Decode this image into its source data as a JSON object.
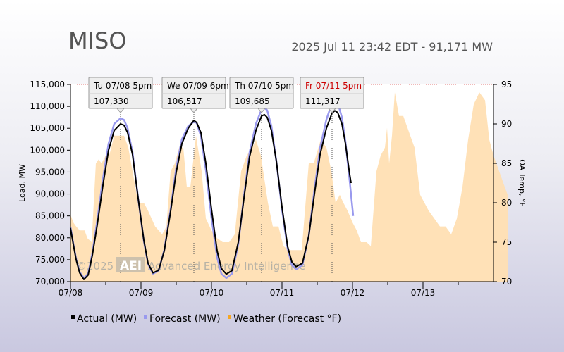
{
  "header": {
    "title": "MISO",
    "subtitle": "2025 Jul 11 23:42 EDT - 91,171 MW"
  },
  "watermark": {
    "prefix": "©2025",
    "logo": "AEI",
    "text": "Advanced Energy Intelligence"
  },
  "colors": {
    "actual": "#000000",
    "forecast": "#9999ee",
    "weather": "#ffdfb3",
    "weather_legend": "#f5a623",
    "tooltip_red": "#cc0000"
  },
  "chart_data": {
    "type": "line",
    "title": "MISO",
    "subtitle": "2025 Jul 11 23:42 EDT - 91,171 MW",
    "xlabel": "",
    "ylabel": "Load, MW",
    "y2label": "OA Temp, °F",
    "ylim": [
      70000,
      115000
    ],
    "y2lim": [
      70,
      95
    ],
    "xlim": [
      0,
      6
    ],
    "x_unit": "days since 07/08 00:00",
    "x_ticks": [
      {
        "x": 0,
        "label": "07/08"
      },
      {
        "x": 1,
        "label": "07/09"
      },
      {
        "x": 2,
        "label": "07/10"
      },
      {
        "x": 3,
        "label": "07/11"
      },
      {
        "x": 4,
        "label": "07/12"
      },
      {
        "x": 5,
        "label": "07/13"
      }
    ],
    "y_ticks": [
      70000,
      75000,
      80000,
      85000,
      90000,
      95000,
      100000,
      105000,
      110000,
      115000
    ],
    "y_tick_labels": [
      "70,000",
      "75,000",
      "80,000",
      "85,000",
      "90,000",
      "95,000",
      "100,000",
      "105,000",
      "110,000",
      "115,000"
    ],
    "y2_ticks": [
      70,
      75,
      80,
      85,
      90,
      95
    ],
    "grid": false,
    "legend": {
      "placement": "bottom-left",
      "items": [
        {
          "label": "Actual (MW)",
          "color": "#000000"
        },
        {
          "label": "Forecast (MW)",
          "color": "#9999ee"
        },
        {
          "label": "Weather (Forecast °F)",
          "color": "#f5a623"
        }
      ]
    },
    "series": [
      {
        "name": "Actual (MW)",
        "axis": "left",
        "points": [
          [
            0,
            82200
          ],
          [
            0.04,
            78500
          ],
          [
            0.08,
            75000
          ],
          [
            0.13,
            72000
          ],
          [
            0.19,
            70500
          ],
          [
            0.25,
            71500
          ],
          [
            0.31,
            76000
          ],
          [
            0.38,
            83000
          ],
          [
            0.46,
            92000
          ],
          [
            0.54,
            100000
          ],
          [
            0.62,
            104500
          ],
          [
            0.71,
            106000
          ],
          [
            0.76,
            105700
          ],
          [
            0.81,
            104000
          ],
          [
            0.88,
            99000
          ],
          [
            0.96,
            89000
          ],
          [
            1.04,
            79500
          ],
          [
            1.1,
            74200
          ],
          [
            1.17,
            72000
          ],
          [
            1.25,
            72600
          ],
          [
            1.33,
            77000
          ],
          [
            1.42,
            86000
          ],
          [
            1.5,
            95000
          ],
          [
            1.58,
            101500
          ],
          [
            1.67,
            105000
          ],
          [
            1.75,
            106800
          ],
          [
            1.79,
            106300
          ],
          [
            1.85,
            104000
          ],
          [
            1.92,
            97000
          ],
          [
            2.0,
            86500
          ],
          [
            2.08,
            77000
          ],
          [
            2.14,
            73000
          ],
          [
            2.21,
            71700
          ],
          [
            2.29,
            72500
          ],
          [
            2.38,
            79000
          ],
          [
            2.46,
            89000
          ],
          [
            2.54,
            98500
          ],
          [
            2.63,
            104500
          ],
          [
            2.71,
            107800
          ],
          [
            2.75,
            108100
          ],
          [
            2.79,
            107500
          ],
          [
            2.85,
            104500
          ],
          [
            2.92,
            97500
          ],
          [
            3.0,
            87000
          ],
          [
            3.08,
            78000
          ],
          [
            3.14,
            74500
          ],
          [
            3.2,
            73400
          ],
          [
            3.29,
            74200
          ],
          [
            3.38,
            80500
          ],
          [
            3.46,
            90000
          ],
          [
            3.54,
            99000
          ],
          [
            3.63,
            105000
          ],
          [
            3.71,
            108500
          ],
          [
            3.75,
            109000
          ],
          [
            3.79,
            108600
          ],
          [
            3.85,
            106000
          ],
          [
            3.9,
            101500
          ],
          [
            3.96,
            94500
          ],
          [
            3.98,
            92500
          ]
        ]
      },
      {
        "name": "Forecast (MW)",
        "axis": "left",
        "points": [
          [
            0,
            82500
          ],
          [
            0.04,
            78700
          ],
          [
            0.08,
            75200
          ],
          [
            0.13,
            72200
          ],
          [
            0.19,
            70800
          ],
          [
            0.25,
            71800
          ],
          [
            0.31,
            76500
          ],
          [
            0.38,
            84000
          ],
          [
            0.46,
            93500
          ],
          [
            0.54,
            101500
          ],
          [
            0.62,
            106000
          ],
          [
            0.71,
            107300
          ],
          [
            0.76,
            106900
          ],
          [
            0.81,
            105000
          ],
          [
            0.88,
            99500
          ],
          [
            0.96,
            89000
          ],
          [
            1.04,
            79300
          ],
          [
            1.1,
            74000
          ],
          [
            1.17,
            71800
          ],
          [
            1.25,
            72500
          ],
          [
            1.33,
            77200
          ],
          [
            1.42,
            86500
          ],
          [
            1.5,
            96000
          ],
          [
            1.58,
            102500
          ],
          [
            1.67,
            105500
          ],
          [
            1.75,
            106500
          ],
          [
            1.79,
            106200
          ],
          [
            1.85,
            103200
          ],
          [
            1.92,
            95500
          ],
          [
            2.0,
            84500
          ],
          [
            2.08,
            75500
          ],
          [
            2.14,
            71800
          ],
          [
            2.21,
            70800
          ],
          [
            2.29,
            71800
          ],
          [
            2.38,
            78500
          ],
          [
            2.46,
            89500
          ],
          [
            2.54,
            99500
          ],
          [
            2.63,
            106000
          ],
          [
            2.71,
            109300
          ],
          [
            2.75,
            109700
          ],
          [
            2.79,
            109100
          ],
          [
            2.85,
            105500
          ],
          [
            2.92,
            97500
          ],
          [
            3.0,
            86500
          ],
          [
            3.08,
            77500
          ],
          [
            3.14,
            73800
          ],
          [
            3.2,
            72800
          ],
          [
            3.29,
            73800
          ],
          [
            3.38,
            80500
          ],
          [
            3.46,
            91000
          ],
          [
            3.54,
            100500
          ],
          [
            3.63,
            107000
          ],
          [
            3.71,
            110800
          ],
          [
            3.75,
            111300
          ],
          [
            3.79,
            110800
          ],
          [
            3.85,
            107500
          ],
          [
            3.9,
            102000
          ],
          [
            3.96,
            93000
          ],
          [
            4.01,
            85000
          ]
        ]
      },
      {
        "name": "Weather (Forecast °F)",
        "axis": "right",
        "type": "area",
        "points": [
          [
            0,
            78.5
          ],
          [
            0.04,
            77.5
          ],
          [
            0.08,
            77
          ],
          [
            0.13,
            76.5
          ],
          [
            0.2,
            76.5
          ],
          [
            0.24,
            75.5
          ],
          [
            0.3,
            75
          ],
          [
            0.36,
            85
          ],
          [
            0.4,
            85.5
          ],
          [
            0.44,
            85
          ],
          [
            0.5,
            86
          ],
          [
            0.55,
            86
          ],
          [
            0.62,
            88.5
          ],
          [
            0.7,
            88.5
          ],
          [
            0.76,
            88.5
          ],
          [
            0.82,
            87
          ],
          [
            0.88,
            84
          ],
          [
            0.96,
            80
          ],
          [
            1.04,
            80
          ],
          [
            1.1,
            79
          ],
          [
            1.2,
            77
          ],
          [
            1.3,
            76
          ],
          [
            1.36,
            77
          ],
          [
            1.42,
            84
          ],
          [
            1.48,
            85
          ],
          [
            1.54,
            87
          ],
          [
            1.6,
            87
          ],
          [
            1.65,
            82
          ],
          [
            1.7,
            82
          ],
          [
            1.78,
            88.5
          ],
          [
            1.86,
            84
          ],
          [
            1.92,
            78
          ],
          [
            2.0,
            76.5
          ],
          [
            2.08,
            75.5
          ],
          [
            2.16,
            75
          ],
          [
            2.25,
            75
          ],
          [
            2.33,
            76
          ],
          [
            2.42,
            84
          ],
          [
            2.5,
            86
          ],
          [
            2.58,
            87
          ],
          [
            2.63,
            88
          ],
          [
            2.7,
            86
          ],
          [
            2.75,
            83
          ],
          [
            2.8,
            80
          ],
          [
            2.87,
            77
          ],
          [
            2.95,
            77
          ],
          [
            3.02,
            74.5
          ],
          [
            3.1,
            74
          ],
          [
            3.2,
            74
          ],
          [
            3.28,
            74
          ],
          [
            3.38,
            85
          ],
          [
            3.45,
            85
          ],
          [
            3.55,
            88
          ],
          [
            3.63,
            87
          ],
          [
            3.7,
            84
          ],
          [
            3.76,
            80
          ],
          [
            3.82,
            81
          ],
          [
            3.87,
            80
          ],
          [
            3.93,
            79
          ],
          [
            4.0,
            77.5
          ],
          [
            4.06,
            76.5
          ],
          [
            4.12,
            75
          ],
          [
            4.2,
            75
          ],
          [
            4.26,
            74.5
          ],
          [
            4.34,
            84
          ],
          [
            4.4,
            86
          ],
          [
            4.46,
            87
          ],
          [
            4.49,
            89.5
          ],
          [
            4.52,
            85
          ],
          [
            4.56,
            88.5
          ],
          [
            4.6,
            94
          ],
          [
            4.66,
            91
          ],
          [
            4.72,
            91
          ],
          [
            4.8,
            89
          ],
          [
            4.88,
            87
          ],
          [
            4.96,
            81
          ],
          [
            5.02,
            80
          ],
          [
            5.08,
            79
          ],
          [
            5.16,
            78
          ],
          [
            5.24,
            77
          ],
          [
            5.32,
            77
          ],
          [
            5.4,
            76
          ],
          [
            5.48,
            78
          ],
          [
            5.56,
            82
          ],
          [
            5.64,
            88
          ],
          [
            5.72,
            92.5
          ],
          [
            5.8,
            94
          ],
          [
            5.88,
            93
          ],
          [
            5.94,
            88
          ],
          [
            6.0,
            86
          ],
          [
            6.04,
            85
          ],
          [
            6.1,
            83.5
          ],
          [
            6.16,
            82
          ],
          [
            6.2,
            81
          ]
        ]
      }
    ],
    "annotations": [
      {
        "label": "Tu 07/08 5pm",
        "value": "107,330",
        "x": 0.71,
        "y": 107330,
        "highlight": false
      },
      {
        "label": "We 07/09 6pm",
        "value": "106,517",
        "x": 1.75,
        "y": 106517,
        "highlight": false
      },
      {
        "label": "Th 07/10 5pm",
        "value": "109,685",
        "x": 2.71,
        "y": 109685,
        "highlight": false
      },
      {
        "label": "Fr 07/11 5pm",
        "value": "111,317",
        "x": 3.71,
        "y": 111317,
        "highlight": true
      }
    ]
  }
}
